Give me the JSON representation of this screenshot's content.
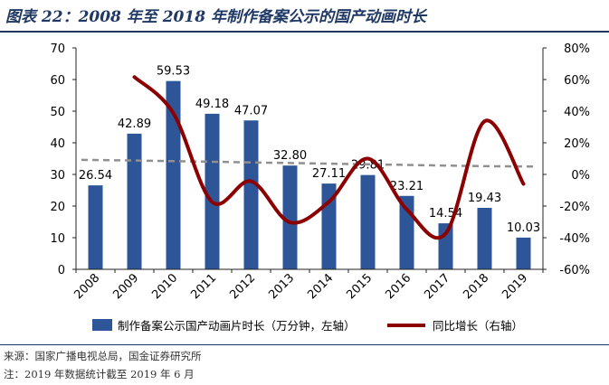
{
  "title": "图表 22：2008 年至 2018 年制作备案公示的国产动画时长",
  "source_note": "来源：国家广播电视总局，国金证券研究所",
  "footnote": "注：2019 年数据统计截至 2019 年 6 月",
  "chart_data": {
    "type": "bar",
    "categories": [
      "2008",
      "2009",
      "2010",
      "2011",
      "2012",
      "2013",
      "2014",
      "2015",
      "2016",
      "2017",
      "2018",
      "2019"
    ],
    "series": [
      {
        "name": "制作备案公示国产动画片时长（万分钟，左轴）",
        "type": "bar",
        "axis": "left",
        "values": [
          26.54,
          42.89,
          59.53,
          49.18,
          47.07,
          32.8,
          27.11,
          29.81,
          23.21,
          14.54,
          19.43,
          10.03
        ],
        "labels": [
          "26.54",
          "42.89",
          "59.53",
          "49.18",
          "47.07",
          "32.80",
          "27.11",
          "29.81",
          "23.21",
          "14.54",
          "19.43",
          "10.03"
        ],
        "color": "#2e5597"
      },
      {
        "name": "同比增长（右轴）",
        "type": "line",
        "axis": "right",
        "smooth": true,
        "values": [
          null,
          61.6,
          38.8,
          -17.4,
          -4.3,
          -30.3,
          -17.3,
          10.0,
          -22.1,
          -37.4,
          33.6,
          -6.0
        ],
        "color": "#8b0000"
      },
      {
        "type": "line",
        "axis": "left",
        "dashed": true,
        "values": [
          34.6,
          34.4,
          34.2,
          34.0,
          33.8,
          33.6,
          33.4,
          33.2,
          33.0,
          32.8,
          32.6,
          32.5
        ],
        "color": "#909090"
      }
    ],
    "left_axis": {
      "ylim": [
        0,
        70
      ],
      "ticks": [
        "0",
        "10",
        "20",
        "30",
        "40",
        "50",
        "60",
        "70"
      ]
    },
    "right_axis": {
      "ylim": [
        -60,
        80
      ],
      "ticks": [
        "-60%",
        "-40%",
        "-20%",
        "0%",
        "20%",
        "40%",
        "60%",
        "80%"
      ]
    },
    "grid": false,
    "legend_position": "bottom"
  }
}
